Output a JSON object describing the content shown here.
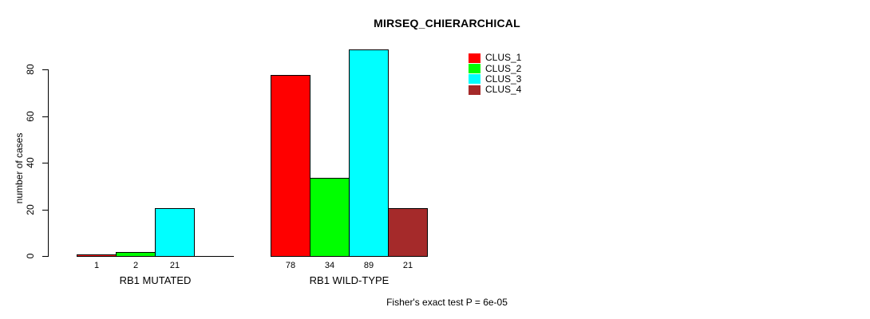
{
  "chart_data": {
    "type": "bar",
    "title": "MIRSEQ_CHIERARCHICAL",
    "ylabel": "number of cases",
    "xlabel": "",
    "ylim": [
      0,
      89
    ],
    "yticks": [
      0,
      20,
      40,
      60,
      80
    ],
    "grid": false,
    "legend_position": "top-right",
    "legend": [
      {
        "name": "CLUS_1",
        "color": "#ff0000"
      },
      {
        "name": "CLUS_2",
        "color": "#00ff00"
      },
      {
        "name": "CLUS_3",
        "color": "#00ffff"
      },
      {
        "name": "CLUS_4",
        "color": "#a52a2a"
      }
    ],
    "series_colors": [
      "#ff0000",
      "#00ff00",
      "#00ffff",
      "#a52a2a"
    ],
    "groups": [
      {
        "label": "RB1 MUTATED",
        "values": [
          1,
          2,
          21,
          0
        ],
        "bar_labels": [
          "1",
          "2",
          "21",
          ""
        ]
      },
      {
        "label": "RB1 WILD-TYPE",
        "values": [
          78,
          34,
          89,
          21
        ],
        "bar_labels": [
          "78",
          "34",
          "89",
          "21"
        ]
      }
    ],
    "annotation": "Fisher's exact test P = 6e-05"
  },
  "colors": {
    "background": "#ffffff",
    "axis": "#000000"
  }
}
